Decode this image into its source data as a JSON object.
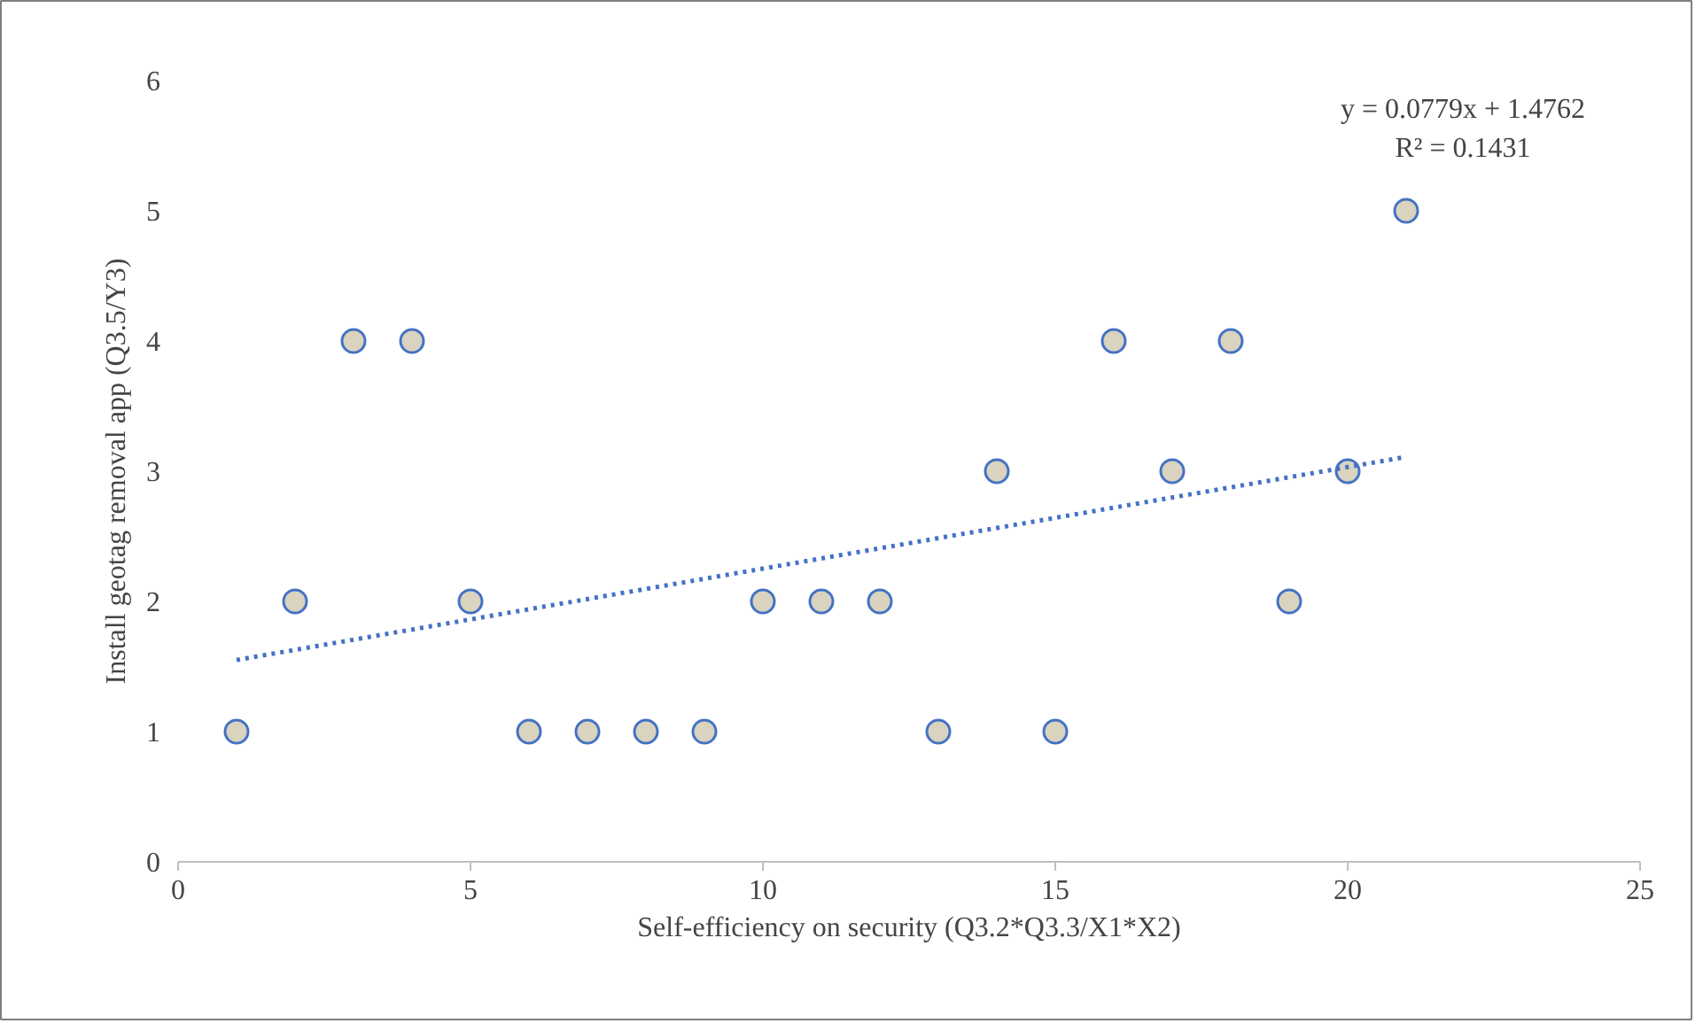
{
  "chart_data": {
    "type": "scatter",
    "xlabel": "Self-efficiency on security (Q3.2*Q3.3/X1*X2)",
    "ylabel": "Install geotag removal app (Q3.5/Y3)",
    "x": [
      1,
      2,
      3,
      4,
      5,
      6,
      7,
      8,
      9,
      10,
      11,
      12,
      13,
      14,
      15,
      16,
      17,
      18,
      19,
      20,
      21
    ],
    "series": [
      {
        "color": "#d9d3bf",
        "marker": "circle",
        "values": [
          1,
          2,
          4,
          4,
          2,
          1,
          1,
          1,
          1,
          2,
          2,
          2,
          1,
          3,
          1,
          4,
          3,
          4,
          2,
          3,
          5
        ]
      },
      {
        "type": "line",
        "color": "#4472c4",
        "line_style": "dotted",
        "marker": "none",
        "x": [
          1,
          21
        ],
        "values": [
          1.55,
          3.11
        ]
      }
    ],
    "xlim": [
      0,
      25
    ],
    "ylim": [
      0,
      6
    ],
    "xticks": [
      0,
      5,
      10,
      15,
      20,
      25
    ],
    "yticks": [
      0,
      1,
      2,
      3,
      4,
      5,
      6
    ],
    "annotations": [
      "y = 0.0779x + 1.4762",
      "R² = 0.1431"
    ],
    "grid": false
  }
}
